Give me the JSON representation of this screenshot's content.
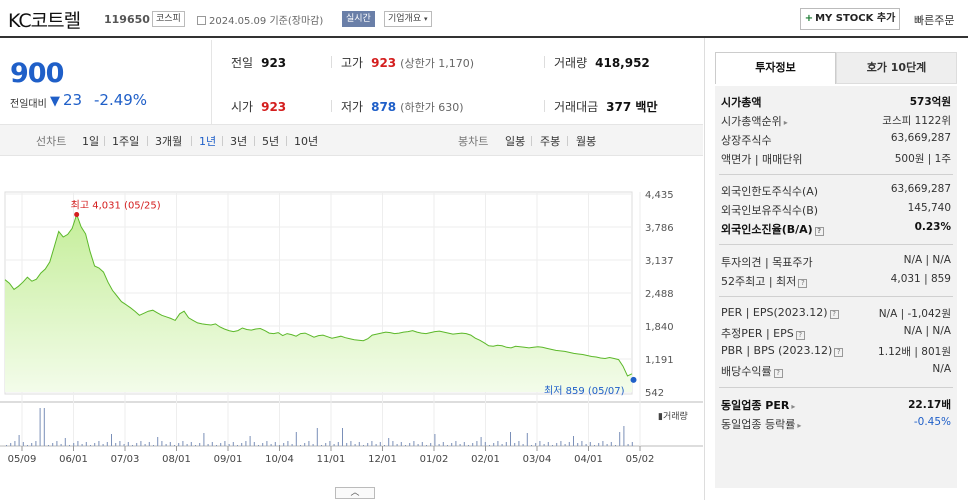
{
  "header": {
    "title": "KC코트렐",
    "code": "119650",
    "market": "코스피",
    "date": "2024.05.09",
    "basis": "기준(장마감)",
    "realtime": "실시간",
    "company_overview": "기업개요",
    "mystock": "MY STOCK 추가",
    "quick_order": "빠른주문"
  },
  "price": {
    "current": "900",
    "change_label": "전일대비",
    "change": "23",
    "change_pct": "-2.49%"
  },
  "stats": {
    "prev_label": "전일",
    "prev": "923",
    "high_label": "고가",
    "high": "923",
    "upper_limit": "(상한가 1,170)",
    "volume_label": "거래량",
    "volume": "418,952",
    "open_label": "시가",
    "open": "923",
    "low_label": "저가",
    "low": "878",
    "lower_limit": "(하한가 630)",
    "amount_label": "거래대금",
    "amount": "377 백만"
  },
  "period_bar": {
    "line_chart": "선차트",
    "periods": [
      "1일",
      "1주일",
      "3개월",
      "1년",
      "3년",
      "5년",
      "10년"
    ],
    "active": "1년",
    "candle_chart": "봉차트",
    "candles": [
      "일봉",
      "주봉",
      "월봉"
    ]
  },
  "chart_data": {
    "type": "area",
    "y_ticks": [
      "4,435",
      "3,786",
      "3,137",
      "2,488",
      "1,840",
      "1,191",
      "542"
    ],
    "x_ticks": [
      "05/09",
      "06/01",
      "07/03",
      "08/01",
      "09/01",
      "10/04",
      "11/01",
      "12/01",
      "01/02",
      "02/01",
      "03/04",
      "04/01",
      "05/02"
    ],
    "ylim": [
      542,
      4435
    ],
    "high_label": "최고 4,031 (05/25)",
    "low_label": "최저 859 (05/07)",
    "volume_label": "거래량",
    "series": [
      {
        "values": [
          2750,
          2680,
          2560,
          2620,
          2700,
          2800,
          2720,
          2760,
          2880,
          2960,
          3100,
          3400,
          3700,
          3590,
          3640,
          3760,
          4031,
          3790,
          3650,
          3300,
          3020,
          2980,
          2900,
          2700,
          2540,
          2430,
          2320,
          2260,
          2200,
          2130,
          2050,
          2090,
          2130,
          2150,
          2100,
          2050,
          2020,
          1990,
          1950,
          2080,
          2130,
          2000,
          1950,
          1900,
          1880,
          1870,
          1860,
          1880,
          1820,
          1780,
          1750,
          1730,
          1750,
          1800,
          1770,
          1760,
          1780,
          1790,
          1750,
          1700,
          1690,
          1710,
          1650,
          1690,
          1670,
          1640,
          1690,
          1700,
          1660,
          1620,
          1650,
          1660,
          1630,
          1600,
          1620,
          1640,
          1610,
          1590,
          1570,
          1560,
          1550,
          1590,
          1660,
          1680,
          1700,
          1720,
          1710,
          1690,
          1700,
          1720,
          1730,
          1750,
          1720,
          1700,
          1690,
          1710,
          1730,
          1740,
          1720,
          1700,
          1680,
          1690,
          1700,
          1690,
          1660,
          1600,
          1560,
          1510,
          1450,
          1440,
          1460,
          1450,
          1420,
          1410,
          1440,
          1430,
          1420,
          1410,
          1420,
          1430,
          1420,
          1400,
          1380,
          1360,
          1350,
          1340,
          1320,
          1300,
          1290,
          1280,
          1260,
          1240,
          1230,
          1210,
          1200,
          1220,
          1200,
          1180,
          1050,
          859,
          900
        ]
      }
    ]
  },
  "right": {
    "tab_invest": "투자정보",
    "tab_orderbook": "호가 10단계",
    "market_cap_label": "시가총액",
    "market_cap": "573억원",
    "market_cap_rank_label": "시가총액순위",
    "market_cap_rank": "코스피 1122위",
    "shares_label": "상장주식수",
    "shares": "63,669,287",
    "par_label": "액면가 | 매매단위",
    "par": "500원 | 1주",
    "foreign_limit_label": "외국인한도주식수(A)",
    "foreign_limit": "63,669,287",
    "foreign_hold_label": "외국인보유주식수(B)",
    "foreign_hold": "145,740",
    "foreign_rate_label": "외국인소진율(B/A)",
    "foreign_rate": "0.23%",
    "opinion_label": "투자의견 | 목표주가",
    "opinion": "N/A | N/A",
    "w52_label": "52주최고 | 최저",
    "w52": "4,031 | 859",
    "per_label": "PER | EPS(2023.12)",
    "per": "N/A | -1,042원",
    "est_per_label": "추정PER | EPS",
    "est_per": "N/A | N/A",
    "pbr_label": "PBR | BPS (2023.12)",
    "pbr": "1.12배 | 801원",
    "div_label": "배당수익률",
    "div": "N/A",
    "ind_per_label": "동일업종 PER",
    "ind_per": "22.17배",
    "ind_chg_label": "동일업종 등락률",
    "ind_chg": "-0.45%"
  }
}
